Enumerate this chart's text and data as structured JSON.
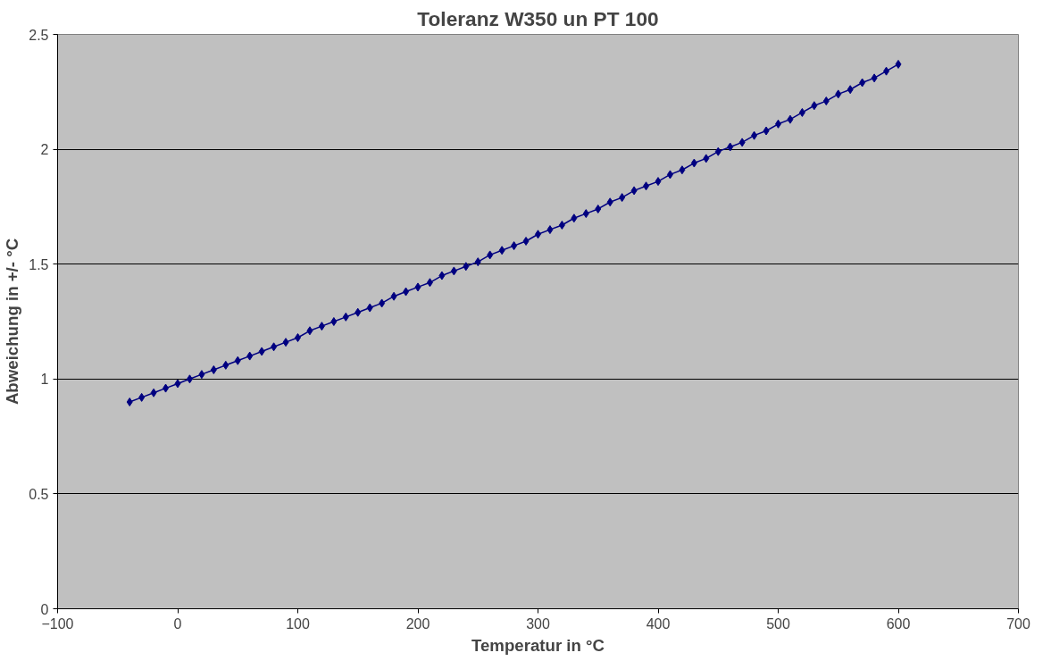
{
  "chart_data": {
    "type": "line",
    "title": "Toleranz W350 un PT 100",
    "xlabel": "Temperatur in °C",
    "ylabel": "Abweichung in +/- °C",
    "x": [
      -40,
      -30,
      -20,
      -10,
      0,
      10,
      20,
      30,
      40,
      50,
      60,
      70,
      80,
      90,
      100,
      110,
      120,
      130,
      140,
      150,
      160,
      170,
      180,
      190,
      200,
      210,
      220,
      230,
      240,
      250,
      260,
      270,
      280,
      290,
      300,
      310,
      320,
      330,
      340,
      350,
      360,
      370,
      380,
      390,
      400,
      410,
      420,
      430,
      440,
      450,
      460,
      470,
      480,
      490,
      500,
      510,
      520,
      530,
      540,
      550,
      560,
      570,
      580,
      590,
      600
    ],
    "series": [
      {
        "color": "#000080",
        "values": [
          0.9,
          0.92,
          0.94,
          0.96,
          0.98,
          1.0,
          1.02,
          1.04,
          1.06,
          1.08,
          1.1,
          1.12,
          1.14,
          1.16,
          1.18,
          1.21,
          1.23,
          1.25,
          1.27,
          1.29,
          1.31,
          1.33,
          1.36,
          1.38,
          1.4,
          1.42,
          1.45,
          1.47,
          1.49,
          1.51,
          1.54,
          1.56,
          1.58,
          1.6,
          1.63,
          1.65,
          1.67,
          1.7,
          1.72,
          1.74,
          1.77,
          1.79,
          1.82,
          1.84,
          1.86,
          1.89,
          1.91,
          1.94,
          1.96,
          1.99,
          2.01,
          2.03,
          2.06,
          2.08,
          2.11,
          2.13,
          2.16,
          2.19,
          2.21,
          2.24,
          2.26,
          2.29,
          2.31,
          2.34,
          2.37
        ]
      }
    ],
    "xlim": [
      -100,
      700
    ],
    "xticks": [
      -100,
      0,
      100,
      200,
      300,
      400,
      500,
      600,
      700
    ],
    "ylim": [
      0,
      2.5
    ],
    "yticks": [
      0,
      0.5,
      1,
      1.5,
      2,
      2.5
    ],
    "grid": "y",
    "marker": "diamond",
    "line_style": "solid"
  }
}
